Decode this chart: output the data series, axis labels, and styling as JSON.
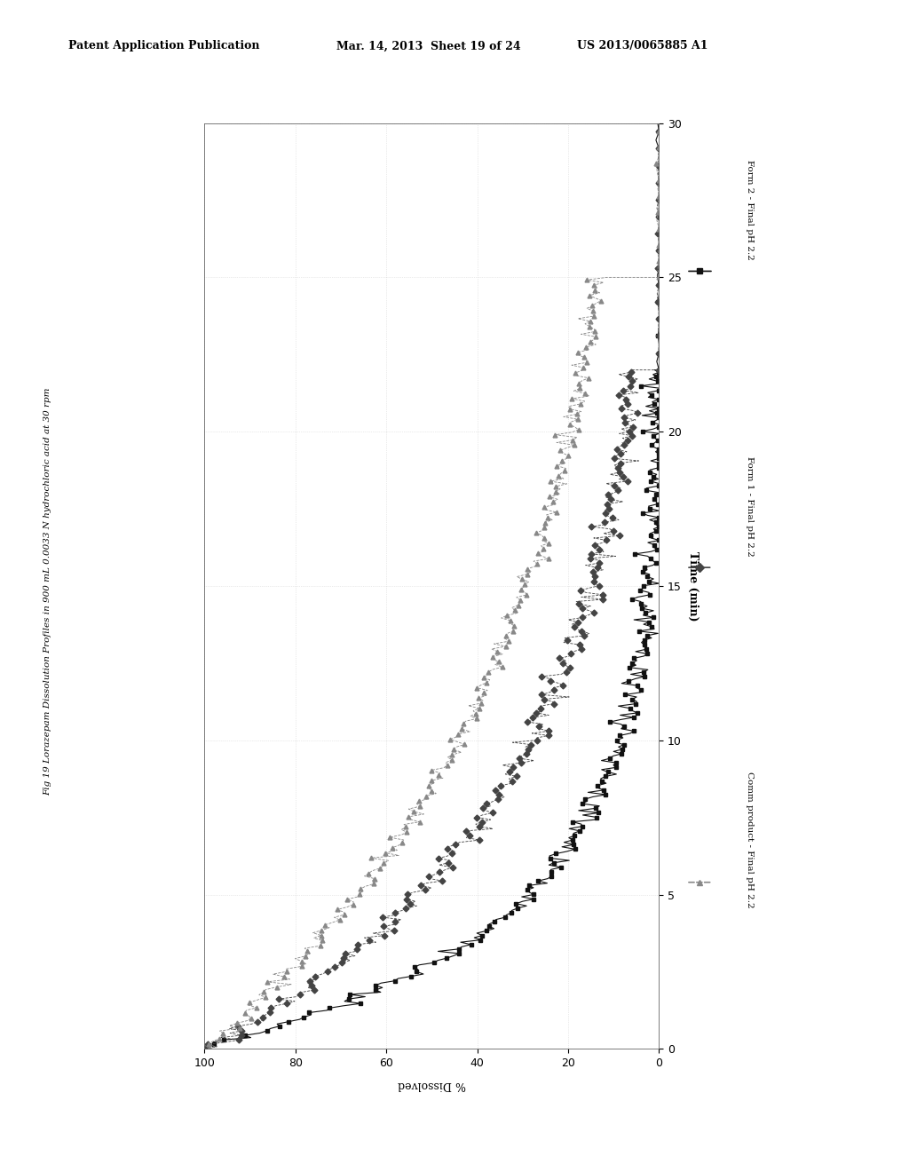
{
  "header_left": "Patent Application Publication",
  "header_mid": "Mar. 14, 2013  Sheet 19 of 24",
  "header_right": "US 2013/0065885 A1",
  "fig_label": "Fig 19 Lorazepam Dissolution Profiles in 900 mL 0.0033 N hydrochloric acid at 30 rpm",
  "xlabel": "% Dissolved",
  "ylabel": "Time (min)",
  "background_color": "#ffffff",
  "legend": [
    {
      "label": "Form 2 - Final pH 2.2",
      "color": "#111111",
      "marker": "s",
      "linestyle": "-"
    },
    {
      "label": "Form 1 - Final pH 2.2",
      "color": "#444444",
      "marker": "D",
      "linestyle": "--"
    },
    {
      "label": "Comm product - Final pH 2.2",
      "color": "#888888",
      "marker": "^",
      "linestyle": "--"
    }
  ]
}
